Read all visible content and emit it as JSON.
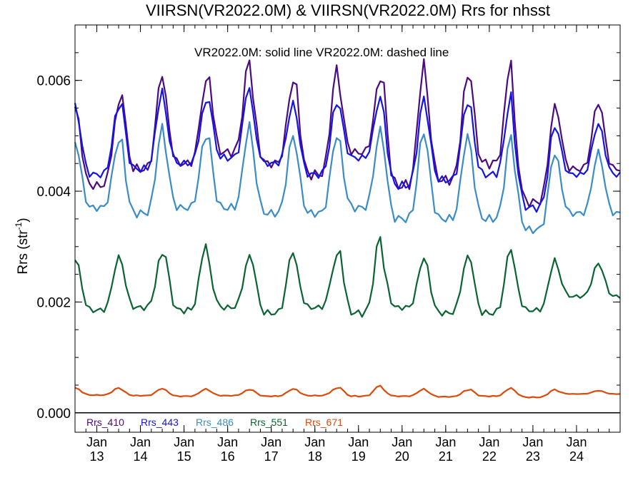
{
  "chart_data": {
    "type": "line",
    "title": "VIIRSN(VR2022.0M) & VIIRSN(VR2022.0M)  Rrs for nhsst",
    "annotation": "VR2022.0M: solid line   VR2022.0M: dashed line",
    "ylabel_main": "Rrs (str",
    "ylabel_sup": "-1",
    "ylabel_end": ")",
    "ylim": [
      -0.00035,
      0.007
    ],
    "xlim": [
      2012.5,
      2025.0
    ],
    "yticks": [
      {
        "value": 0.0,
        "label": "0.000"
      },
      {
        "value": 0.002,
        "label": "0.002"
      },
      {
        "value": 0.004,
        "label": "0.004"
      },
      {
        "value": 0.006,
        "label": "0.006"
      }
    ],
    "xticks": [
      {
        "value": 2013.0,
        "month": "Jan",
        "year": "13"
      },
      {
        "value": 2014.0,
        "month": "Jan",
        "year": "14"
      },
      {
        "value": 2015.0,
        "month": "Jan",
        "year": "15"
      },
      {
        "value": 2016.0,
        "month": "Jan",
        "year": "16"
      },
      {
        "value": 2017.0,
        "month": "Jan",
        "year": "17"
      },
      {
        "value": 2018.0,
        "month": "Jan",
        "year": "18"
      },
      {
        "value": 2019.0,
        "month": "Jan",
        "year": "19"
      },
      {
        "value": 2020.0,
        "month": "Jan",
        "year": "20"
      },
      {
        "value": 2021.0,
        "month": "Jan",
        "year": "21"
      },
      {
        "value": 2022.0,
        "month": "Jan",
        "year": "22"
      },
      {
        "value": 2023.0,
        "month": "Jan",
        "year": "23"
      },
      {
        "value": 2024.0,
        "month": "Jan",
        "year": "24"
      }
    ],
    "series": [
      {
        "name": "Rrs_410",
        "color": "#4b0a82",
        "peaks": [
          0.00552,
          0.00615,
          0.00592,
          0.0064,
          0.00598,
          0.0062,
          0.00605,
          0.0063,
          0.00607,
          0.0064,
          0.0055,
          0.00562
        ],
        "lows": [
          0.0041,
          0.0044,
          0.0045,
          0.0047,
          0.0045,
          0.0043,
          0.0047,
          0.0041,
          0.0042,
          0.0045,
          0.0038,
          0.0044
        ]
      },
      {
        "name": "Rrs_443",
        "color": "#1414e6",
        "peaks": [
          0.00553,
          0.00583,
          0.00558,
          0.00592,
          0.00558,
          0.0056,
          0.0057,
          0.00567,
          0.00562,
          0.00572,
          0.00518,
          0.00522
        ],
        "lows": [
          0.0043,
          0.0044,
          0.0045,
          0.0046,
          0.0045,
          0.0043,
          0.0046,
          0.0041,
          0.0042,
          0.0043,
          0.0037,
          0.0043
        ]
      },
      {
        "name": "Rrs_486",
        "color": "#3a8cc8",
        "peaks": [
          0.0049,
          0.00515,
          0.005,
          0.0052,
          0.005,
          0.005,
          0.0051,
          0.0051,
          0.005,
          0.005,
          0.0047,
          0.0047
        ],
        "lows": [
          0.0037,
          0.0036,
          0.0037,
          0.0037,
          0.0036,
          0.0036,
          0.0037,
          0.0035,
          0.0035,
          0.0035,
          0.0033,
          0.0036
        ]
      },
      {
        "name": "Rrs_551",
        "color": "#0a6432",
        "peaks": [
          0.0028,
          0.00288,
          0.00305,
          0.00282,
          0.00294,
          0.0028,
          0.0032,
          0.0028,
          0.0028,
          0.003,
          0.00276,
          0.0027
        ],
        "lows": [
          0.00185,
          0.0019,
          0.00185,
          0.0019,
          0.0018,
          0.0019,
          0.0018,
          0.0019,
          0.0018,
          0.0018,
          0.00185,
          0.0021
        ]
      },
      {
        "name": "Rrs_671",
        "color": "#dc4a0a",
        "peaks": [
          0.00045,
          0.00044,
          0.00043,
          0.00042,
          0.00043,
          0.00044,
          0.0005,
          0.00043,
          0.00041,
          0.00045,
          0.00042,
          0.0004
        ],
        "lows": [
          0.00032,
          0.00031,
          0.0003,
          0.00031,
          0.0003,
          0.00031,
          0.0003,
          0.0003,
          0.00029,
          0.0003,
          0.00028,
          0.00034
        ]
      }
    ]
  }
}
